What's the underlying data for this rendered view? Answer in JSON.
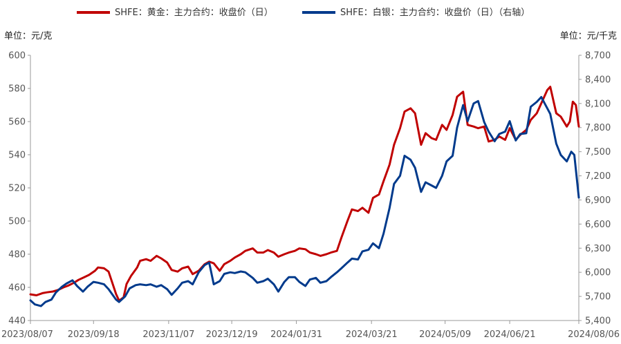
{
  "chart_data": {
    "type": "line",
    "left_unit": "单位：元/克",
    "right_unit": "单位：元/千克",
    "left_axis": {
      "min": 440,
      "max": 600,
      "ticks": [
        440,
        460,
        480,
        500,
        520,
        540,
        560,
        580,
        600
      ]
    },
    "right_axis": {
      "min": 5400,
      "max": 8700,
      "ticks": [
        5400,
        5700,
        6000,
        6300,
        6600,
        6900,
        7200,
        7500,
        7800,
        8100,
        8400,
        8700
      ],
      "tick_labels": [
        "5,400",
        "5,700",
        "6,000",
        "6,300",
        "6,600",
        "6,900",
        "7,200",
        "7,500",
        "7,800",
        "8,100",
        "8,400",
        "8,700"
      ]
    },
    "x_axis": {
      "start": "2023-08-07",
      "end": "2024-08-06",
      "tick_dates": [
        "2023-08-07",
        "2023-09-18",
        "2023-11-07",
        "2023-12-19",
        "2024-01-31",
        "2024-03-21",
        "2024-05-09",
        "2024-06-21",
        "2024-08-06"
      ],
      "tick_labels": [
        "2023/08/07",
        "2023/09/18",
        "2023/11/07",
        "2023/12/19",
        "2024/01/31",
        "2024/03/21",
        "2024/05/09",
        "2024/06/21",
        "2024/08/06"
      ]
    },
    "legend_position": "top",
    "grid": false,
    "series": [
      {
        "name": "SHFE：黄金：主力合约：收盘价（日）",
        "axis": "left",
        "color": "#c00000",
        "points": [
          [
            "2023-08-07",
            455.8
          ],
          [
            "2023-08-11",
            455.2
          ],
          [
            "2023-08-15",
            456.5
          ],
          [
            "2023-08-18",
            457.0
          ],
          [
            "2023-08-22",
            457.5
          ],
          [
            "2023-08-25",
            458.3
          ],
          [
            "2023-08-29",
            460.0
          ],
          [
            "2023-09-01",
            461.0
          ],
          [
            "2023-09-05",
            462.8
          ],
          [
            "2023-09-08",
            464.5
          ],
          [
            "2023-09-12",
            466.2
          ],
          [
            "2023-09-15",
            467.5
          ],
          [
            "2023-09-19",
            470.0
          ],
          [
            "2023-09-21",
            472.0
          ],
          [
            "2023-09-25",
            471.5
          ],
          [
            "2023-09-28",
            469.5
          ],
          [
            "2023-10-03",
            456.0
          ],
          [
            "2023-10-05",
            452.0
          ],
          [
            "2023-10-08",
            454.0
          ],
          [
            "2023-10-10",
            462.0
          ],
          [
            "2023-10-13",
            467.0
          ],
          [
            "2023-10-17",
            472.0
          ],
          [
            "2023-10-19",
            476.0
          ],
          [
            "2023-10-23",
            477.0
          ],
          [
            "2023-10-26",
            476.0
          ],
          [
            "2023-10-30",
            479.0
          ],
          [
            "2023-11-02",
            477.5
          ],
          [
            "2023-11-06",
            475.0
          ],
          [
            "2023-11-09",
            470.5
          ],
          [
            "2023-11-13",
            469.5
          ],
          [
            "2023-11-16",
            471.5
          ],
          [
            "2023-11-20",
            472.5
          ],
          [
            "2023-11-23",
            468.0
          ],
          [
            "2023-11-27",
            470.0
          ],
          [
            "2023-12-01",
            474.0
          ],
          [
            "2023-12-04",
            475.5
          ],
          [
            "2023-12-07",
            474.5
          ],
          [
            "2023-12-11",
            470.0
          ],
          [
            "2023-12-14",
            474.0
          ],
          [
            "2023-12-18",
            476.0
          ],
          [
            "2023-12-21",
            478.0
          ],
          [
            "2023-12-25",
            480.0
          ],
          [
            "2023-12-28",
            482.0
          ],
          [
            "2024-01-02",
            483.5
          ],
          [
            "2024-01-05",
            481.0
          ],
          [
            "2024-01-09",
            481.0
          ],
          [
            "2024-01-12",
            482.5
          ],
          [
            "2024-01-16",
            481.0
          ],
          [
            "2024-01-19",
            478.5
          ],
          [
            "2024-01-23",
            480.0
          ],
          [
            "2024-01-26",
            481.0
          ],
          [
            "2024-01-30",
            482.0
          ],
          [
            "2024-02-02",
            483.5
          ],
          [
            "2024-02-06",
            483.0
          ],
          [
            "2024-02-09",
            481.0
          ],
          [
            "2024-02-13",
            480.0
          ],
          [
            "2024-02-16",
            479.0
          ],
          [
            "2024-02-20",
            480.0
          ],
          [
            "2024-02-23",
            481.0
          ],
          [
            "2024-02-27",
            482.0
          ],
          [
            "2024-03-01",
            490.0
          ],
          [
            "2024-03-05",
            500.0
          ],
          [
            "2024-03-08",
            507.0
          ],
          [
            "2024-03-12",
            506.0
          ],
          [
            "2024-03-15",
            508.0
          ],
          [
            "2024-03-19",
            505.0
          ],
          [
            "2024-03-22",
            514.0
          ],
          [
            "2024-03-26",
            516.0
          ],
          [
            "2024-03-29",
            524.0
          ],
          [
            "2024-04-02",
            534.0
          ],
          [
            "2024-04-05",
            546.0
          ],
          [
            "2024-04-09",
            556.0
          ],
          [
            "2024-04-12",
            566.0
          ],
          [
            "2024-04-16",
            568.0
          ],
          [
            "2024-04-19",
            565.0
          ],
          [
            "2024-04-23",
            546.0
          ],
          [
            "2024-04-26",
            553.0
          ],
          [
            "2024-04-30",
            550.0
          ],
          [
            "2024-05-03",
            549.0
          ],
          [
            "2024-05-07",
            558.0
          ],
          [
            "2024-05-10",
            555.0
          ],
          [
            "2024-05-14",
            564.0
          ],
          [
            "2024-05-17",
            575.0
          ],
          [
            "2024-05-21",
            578.0
          ],
          [
            "2024-05-24",
            558.0
          ],
          [
            "2024-05-28",
            557.0
          ],
          [
            "2024-05-31",
            556.0
          ],
          [
            "2024-06-04",
            557.0
          ],
          [
            "2024-06-07",
            548.0
          ],
          [
            "2024-06-11",
            549.0
          ],
          [
            "2024-06-14",
            551.0
          ],
          [
            "2024-06-18",
            549.0
          ],
          [
            "2024-06-21",
            556.0
          ],
          [
            "2024-06-25",
            549.0
          ],
          [
            "2024-06-28",
            552.0
          ],
          [
            "2024-07-02",
            555.0
          ],
          [
            "2024-07-05",
            561.0
          ],
          [
            "2024-07-09",
            565.0
          ],
          [
            "2024-07-12",
            571.0
          ],
          [
            "2024-07-16",
            579.0
          ],
          [
            "2024-07-18",
            581.0
          ],
          [
            "2024-07-22",
            565.0
          ],
          [
            "2024-07-25",
            563.0
          ],
          [
            "2024-07-29",
            557.0
          ],
          [
            "2024-07-31",
            560.0
          ],
          [
            "2024-08-02",
            572.0
          ],
          [
            "2024-08-04",
            570.0
          ],
          [
            "2024-08-06",
            557.0
          ]
        ]
      },
      {
        "name": "SHFE：白银：主力合约：收盘价（日）（右轴）",
        "axis": "right",
        "color": "#003a8c",
        "points": [
          [
            "2023-08-07",
            5650
          ],
          [
            "2023-08-10",
            5600
          ],
          [
            "2023-08-14",
            5580
          ],
          [
            "2023-08-17",
            5630
          ],
          [
            "2023-08-21",
            5660
          ],
          [
            "2023-08-24",
            5750
          ],
          [
            "2023-08-28",
            5820
          ],
          [
            "2023-08-31",
            5860
          ],
          [
            "2023-09-04",
            5900
          ],
          [
            "2023-09-07",
            5830
          ],
          [
            "2023-09-11",
            5760
          ],
          [
            "2023-09-14",
            5820
          ],
          [
            "2023-09-18",
            5880
          ],
          [
            "2023-09-21",
            5870
          ],
          [
            "2023-09-25",
            5850
          ],
          [
            "2023-09-28",
            5790
          ],
          [
            "2023-10-03",
            5660
          ],
          [
            "2023-10-05",
            5630
          ],
          [
            "2023-10-09",
            5700
          ],
          [
            "2023-10-12",
            5800
          ],
          [
            "2023-10-16",
            5840
          ],
          [
            "2023-10-19",
            5850
          ],
          [
            "2023-10-23",
            5840
          ],
          [
            "2023-10-26",
            5850
          ],
          [
            "2023-10-30",
            5820
          ],
          [
            "2023-11-02",
            5840
          ],
          [
            "2023-11-06",
            5790
          ],
          [
            "2023-11-09",
            5720
          ],
          [
            "2023-11-13",
            5800
          ],
          [
            "2023-11-16",
            5870
          ],
          [
            "2023-11-20",
            5890
          ],
          [
            "2023-11-23",
            5850
          ],
          [
            "2023-11-27",
            6000
          ],
          [
            "2023-12-01",
            6090
          ],
          [
            "2023-12-04",
            6120
          ],
          [
            "2023-12-07",
            5850
          ],
          [
            "2023-12-11",
            5890
          ],
          [
            "2023-12-14",
            5980
          ],
          [
            "2023-12-18",
            6000
          ],
          [
            "2023-12-21",
            5990
          ],
          [
            "2023-12-25",
            6010
          ],
          [
            "2023-12-28",
            6000
          ],
          [
            "2024-01-02",
            5930
          ],
          [
            "2024-01-05",
            5870
          ],
          [
            "2024-01-09",
            5890
          ],
          [
            "2024-01-12",
            5920
          ],
          [
            "2024-01-16",
            5850
          ],
          [
            "2024-01-19",
            5760
          ],
          [
            "2024-01-23",
            5880
          ],
          [
            "2024-01-26",
            5940
          ],
          [
            "2024-01-30",
            5940
          ],
          [
            "2024-02-02",
            5880
          ],
          [
            "2024-02-06",
            5830
          ],
          [
            "2024-02-09",
            5910
          ],
          [
            "2024-02-13",
            5930
          ],
          [
            "2024-02-16",
            5870
          ],
          [
            "2024-02-20",
            5890
          ],
          [
            "2024-02-23",
            5940
          ],
          [
            "2024-02-27",
            6000
          ],
          [
            "2024-03-01",
            6050
          ],
          [
            "2024-03-05",
            6120
          ],
          [
            "2024-03-08",
            6170
          ],
          [
            "2024-03-12",
            6160
          ],
          [
            "2024-03-15",
            6260
          ],
          [
            "2024-03-19",
            6280
          ],
          [
            "2024-03-22",
            6360
          ],
          [
            "2024-03-26",
            6300
          ],
          [
            "2024-03-29",
            6480
          ],
          [
            "2024-04-02",
            6800
          ],
          [
            "2024-04-05",
            7100
          ],
          [
            "2024-04-09",
            7200
          ],
          [
            "2024-04-12",
            7450
          ],
          [
            "2024-04-16",
            7400
          ],
          [
            "2024-04-19",
            7300
          ],
          [
            "2024-04-23",
            7000
          ],
          [
            "2024-04-26",
            7120
          ],
          [
            "2024-04-30",
            7080
          ],
          [
            "2024-05-03",
            7050
          ],
          [
            "2024-05-07",
            7200
          ],
          [
            "2024-05-10",
            7380
          ],
          [
            "2024-05-14",
            7450
          ],
          [
            "2024-05-17",
            7800
          ],
          [
            "2024-05-21",
            8080
          ],
          [
            "2024-05-24",
            7880
          ],
          [
            "2024-05-28",
            8100
          ],
          [
            "2024-05-31",
            8130
          ],
          [
            "2024-06-04",
            7870
          ],
          [
            "2024-06-07",
            7750
          ],
          [
            "2024-06-11",
            7630
          ],
          [
            "2024-06-14",
            7720
          ],
          [
            "2024-06-18",
            7750
          ],
          [
            "2024-06-21",
            7880
          ],
          [
            "2024-06-25",
            7640
          ],
          [
            "2024-06-28",
            7720
          ],
          [
            "2024-07-02",
            7730
          ],
          [
            "2024-07-05",
            8060
          ],
          [
            "2024-07-09",
            8120
          ],
          [
            "2024-07-12",
            8180
          ],
          [
            "2024-07-16",
            8040
          ],
          [
            "2024-07-18",
            7970
          ],
          [
            "2024-07-22",
            7600
          ],
          [
            "2024-07-25",
            7460
          ],
          [
            "2024-07-29",
            7380
          ],
          [
            "2024-08-01",
            7500
          ],
          [
            "2024-08-03",
            7460
          ],
          [
            "2024-08-06",
            6930
          ]
        ]
      }
    ]
  }
}
